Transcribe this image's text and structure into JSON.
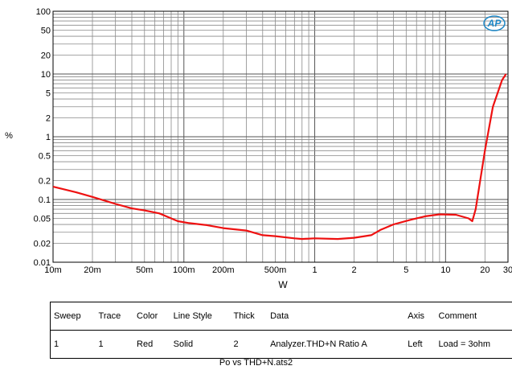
{
  "chart_data": {
    "type": "line",
    "xlabel": "W",
    "ylabel": "%",
    "x_scale": "log",
    "y_scale": "log",
    "xlim": [
      0.01,
      30
    ],
    "ylim": [
      0.01,
      100
    ],
    "grid": true,
    "x_tick_labels": [
      {
        "value": 0.01,
        "label": "10m"
      },
      {
        "value": 0.02,
        "label": "20m"
      },
      {
        "value": 0.05,
        "label": "50m"
      },
      {
        "value": 0.1,
        "label": "100m"
      },
      {
        "value": 0.2,
        "label": "200m"
      },
      {
        "value": 0.5,
        "label": "500m"
      },
      {
        "value": 1,
        "label": "1"
      },
      {
        "value": 2,
        "label": "2"
      },
      {
        "value": 5,
        "label": "5"
      },
      {
        "value": 10,
        "label": "10"
      },
      {
        "value": 20,
        "label": "20"
      },
      {
        "value": 30,
        "label": "30"
      }
    ],
    "y_tick_labels": [
      {
        "value": 100,
        "label": "100"
      },
      {
        "value": 50,
        "label": "50"
      },
      {
        "value": 20,
        "label": "20"
      },
      {
        "value": 10,
        "label": "10"
      },
      {
        "value": 5,
        "label": "5"
      },
      {
        "value": 2,
        "label": "2"
      },
      {
        "value": 1,
        "label": "1"
      },
      {
        "value": 0.5,
        "label": "0.5"
      },
      {
        "value": 0.2,
        "label": "0.2"
      },
      {
        "value": 0.1,
        "label": "0.1"
      },
      {
        "value": 0.05,
        "label": "0.05"
      },
      {
        "value": 0.02,
        "label": "0.02"
      },
      {
        "value": 0.01,
        "label": "0.01"
      }
    ],
    "series": [
      {
        "color": "#ee1111",
        "points": [
          [
            0.01,
            0.16
          ],
          [
            0.015,
            0.13
          ],
          [
            0.02,
            0.11
          ],
          [
            0.03,
            0.085
          ],
          [
            0.04,
            0.072
          ],
          [
            0.05,
            0.067
          ],
          [
            0.065,
            0.06
          ],
          [
            0.08,
            0.05
          ],
          [
            0.09,
            0.045
          ],
          [
            0.11,
            0.042
          ],
          [
            0.15,
            0.039
          ],
          [
            0.2,
            0.035
          ],
          [
            0.3,
            0.032
          ],
          [
            0.4,
            0.027
          ],
          [
            0.5,
            0.026
          ],
          [
            0.7,
            0.024
          ],
          [
            0.8,
            0.0235
          ],
          [
            1.0,
            0.024
          ],
          [
            1.5,
            0.0235
          ],
          [
            2.0,
            0.0245
          ],
          [
            2.7,
            0.027
          ],
          [
            3.2,
            0.033
          ],
          [
            4.0,
            0.04
          ],
          [
            5.5,
            0.048
          ],
          [
            7.0,
            0.054
          ],
          [
            9.0,
            0.058
          ],
          [
            12.0,
            0.057
          ],
          [
            15.0,
            0.05
          ],
          [
            16.0,
            0.045
          ],
          [
            17.0,
            0.07
          ],
          [
            20.0,
            0.6
          ],
          [
            23.0,
            3.0
          ],
          [
            27.0,
            8.0
          ],
          [
            29.0,
            10.0
          ]
        ]
      }
    ]
  },
  "logo": {
    "text": "AP",
    "color": "#1e88c7"
  },
  "legend_table": {
    "headers": [
      "Sweep",
      "Trace",
      "Color",
      "Line Style",
      "Thick",
      "Data",
      "Axis",
      "Comment"
    ],
    "rows": [
      [
        "1",
        "1",
        "Red",
        "Solid",
        "2",
        "Analyzer.THD+N Ratio A",
        "Left",
        "Load = 3ohm"
      ]
    ]
  },
  "footer": {
    "caption": "Po vs THD+N.ats2"
  }
}
